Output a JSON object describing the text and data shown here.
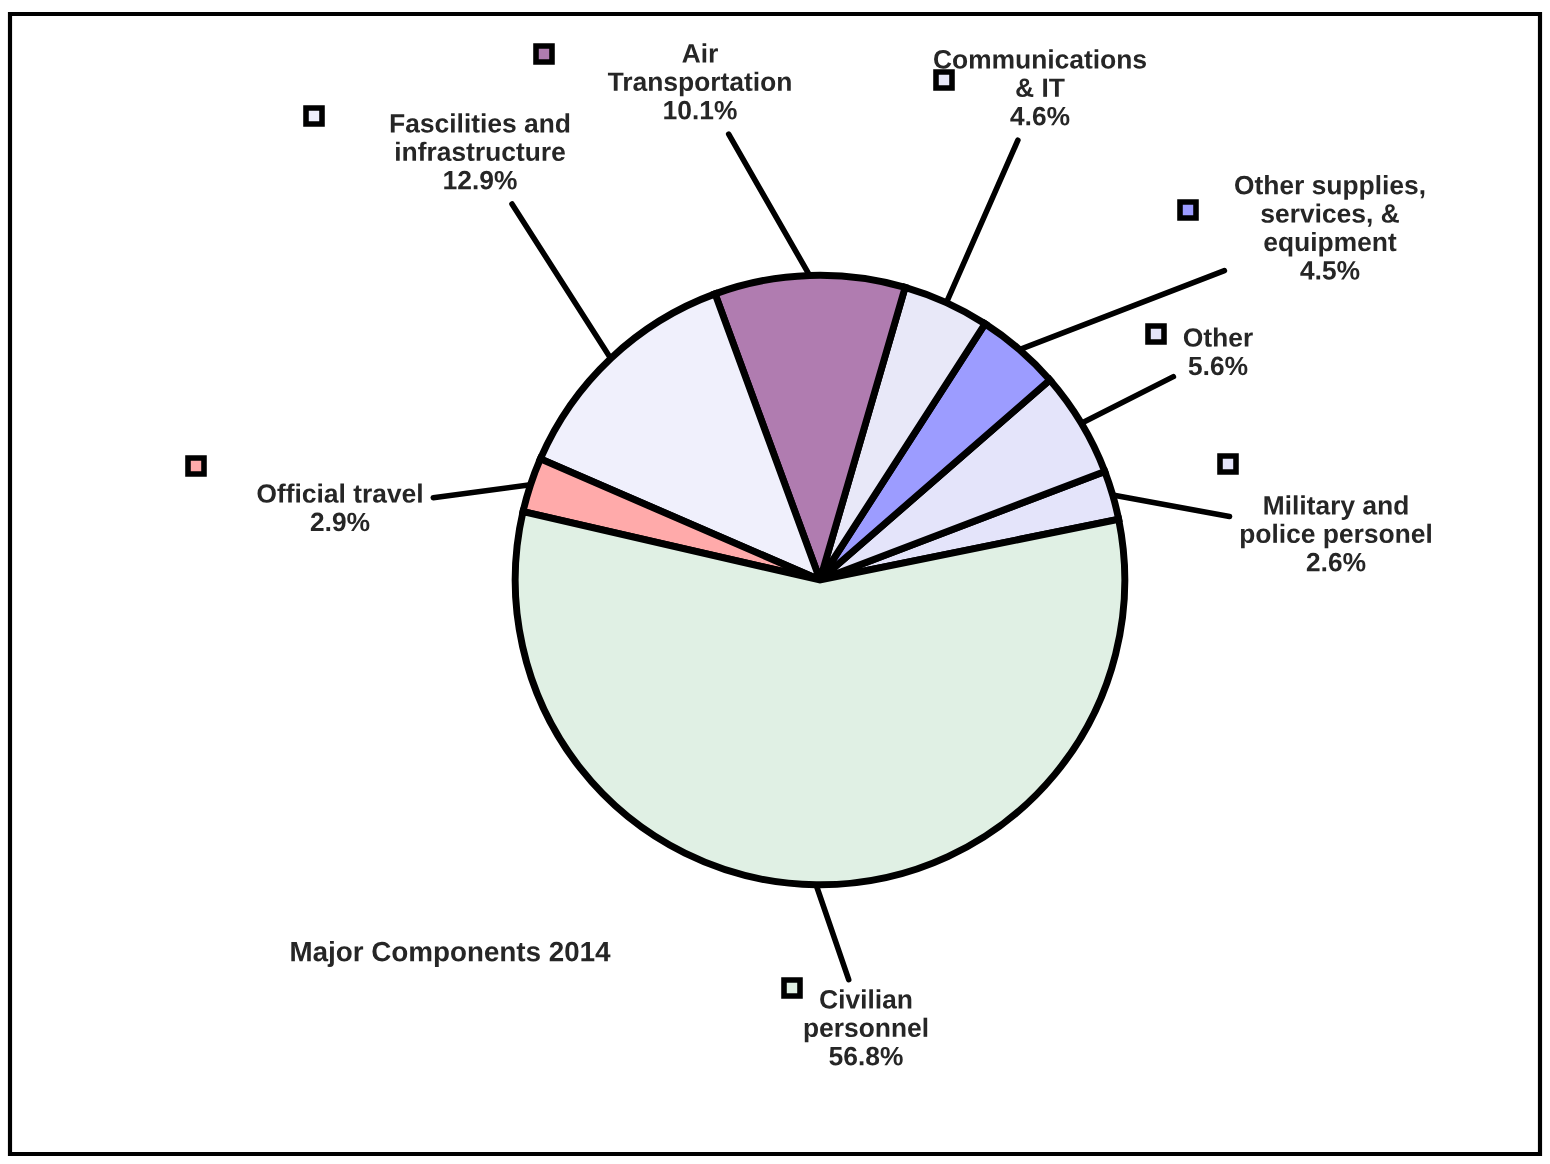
{
  "chart_data": {
    "type": "pie",
    "title": "Major Components 2014",
    "categories": [
      "Military and\npolice personel",
      "Other",
      "Other supplies,\nservices, &\nequipment",
      "Communications\n& IT",
      "Air\nTransportation",
      "Fascilities and\ninfrastructure",
      "Official travel",
      "Civilian\npersonnel"
    ],
    "values": [
      2.6,
      5.6,
      4.5,
      4.6,
      10.1,
      12.9,
      2.9,
      56.8
    ],
    "legend": "right",
    "value_labels": [
      "2.6%",
      "5.6%",
      "4.5%",
      "4.6%",
      "10.1%",
      "12.9%",
      "2.9%",
      "56.8%"
    ],
    "colors": [
      "#e4e4fa",
      "#e4e4fa",
      "#9c9cff",
      "#e8e8f8",
      "#b07cb0",
      "#f0f0fc",
      "#ffaaaa",
      "#e0f0e4"
    ]
  }
}
